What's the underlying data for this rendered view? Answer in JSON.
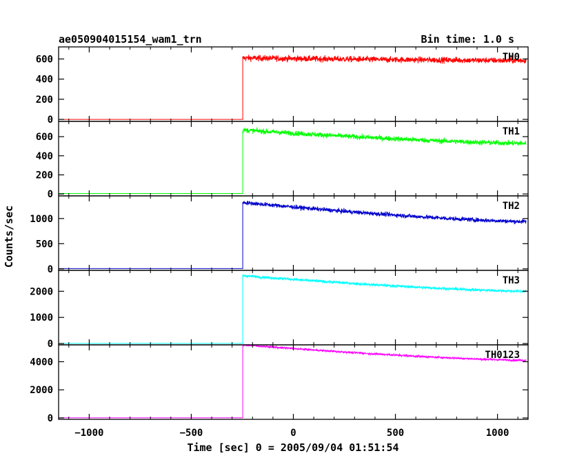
{
  "chart_data": {
    "type": "line",
    "title": "ae050904015154_wam1_trn",
    "subtitle": "Bin time: 1.0 s",
    "xlabel": "Time [sec] 0 = 2005/09/04 01:51:54",
    "ylabel": "Counts/sec",
    "xlim": [
      -1150,
      1150
    ],
    "x_ticks": [
      -1000,
      -500,
      0,
      500,
      1000
    ],
    "x_tick_labels": [
      "−1000",
      "−500",
      "0",
      "500",
      "1000"
    ],
    "onset_time": -248,
    "data_range": [
      -1148,
      1140
    ],
    "grid": false,
    "panels": [
      {
        "name": "TH0",
        "color": "#ff0000",
        "ylim": [
          -20,
          720
        ],
        "y_ticks": [
          0,
          200,
          400,
          600
        ],
        "y_tick_labels": [
          "0",
          "200",
          "400",
          "600"
        ],
        "pre_level": 0,
        "level_start": 610,
        "level_end": 585,
        "noise": 28,
        "x": [
          -1148,
          -248,
          -240,
          0,
          500,
          1140
        ],
        "y": [
          0,
          0,
          620,
          600,
          590,
          585
        ]
      },
      {
        "name": "TH1",
        "color": "#00ff00",
        "ylim": [
          -20,
          760
        ],
        "y_ticks": [
          0,
          200,
          400,
          600
        ],
        "y_tick_labels": [
          "0",
          "200",
          "400",
          "600"
        ],
        "pre_level": 5,
        "level_start": 670,
        "level_end": 530,
        "noise": 25,
        "x": [
          -1148,
          -248,
          -240,
          0,
          500,
          1140
        ],
        "y": [
          5,
          5,
          680,
          620,
          570,
          530
        ]
      },
      {
        "name": "TH2",
        "color": "#0000cc",
        "ylim": [
          -30,
          1450
        ],
        "y_ticks": [
          0,
          500,
          1000
        ],
        "y_tick_labels": [
          "0",
          "500",
          "1000"
        ],
        "pre_level": 5,
        "level_start": 1320,
        "level_end": 940,
        "noise": 40,
        "x": [
          -1148,
          -248,
          -240,
          0,
          500,
          1140
        ],
        "y": [
          5,
          5,
          1330,
          1220,
          1080,
          940
        ]
      },
      {
        "name": "TH3",
        "color": "#00ffff",
        "ylim": [
          -50,
          2800
        ],
        "y_ticks": [
          0,
          1000,
          2000
        ],
        "y_tick_labels": [
          "0",
          "1000",
          "2000"
        ],
        "pre_level": 5,
        "level_start": 2600,
        "level_end": 2000,
        "noise": 50,
        "x": [
          -1148,
          -248,
          -240,
          0,
          500,
          1140
        ],
        "y": [
          5,
          5,
          2620,
          2450,
          2250,
          2000
        ]
      },
      {
        "name": "TH0123",
        "color": "#ff00ff",
        "ylim": [
          -100,
          5200
        ],
        "y_ticks": [
          0,
          2000,
          4000
        ],
        "y_tick_labels": [
          "0",
          "2000",
          "4000"
        ],
        "pre_level": 10,
        "level_start": 5200,
        "level_end": 4100,
        "noise": 65,
        "x": [
          -1148,
          -248,
          -240,
          0,
          500,
          1140
        ],
        "y": [
          10,
          10,
          5200,
          4900,
          4450,
          4100
        ]
      }
    ]
  }
}
